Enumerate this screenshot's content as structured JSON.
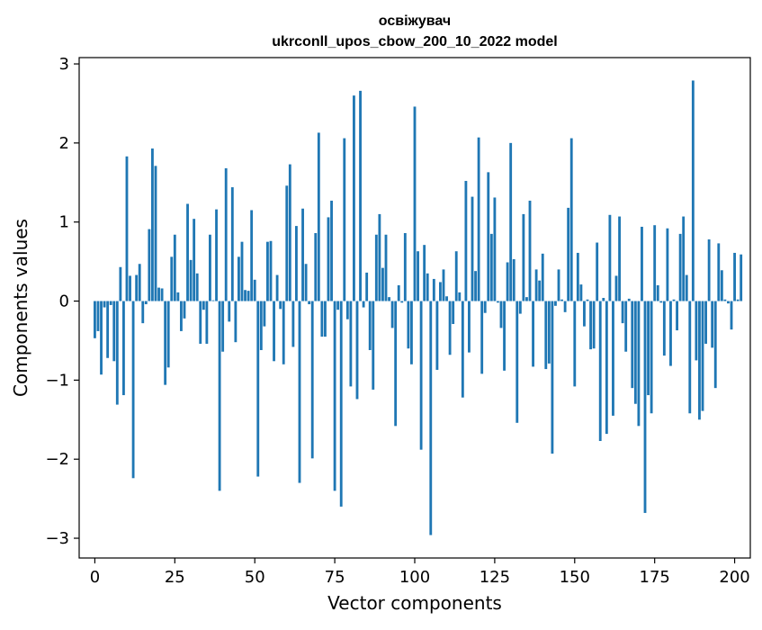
{
  "chart_data": {
    "type": "bar",
    "title_line1": "освіжувач",
    "title_line2": "ukrconll_upos_cbow_200_10_2022 model",
    "xlabel": "Vector components",
    "ylabel": "Components values",
    "xlim": [
      -4.9,
      204.9
    ],
    "ylim": [
      -3.25,
      3.08
    ],
    "x_ticks": [
      0,
      25,
      50,
      75,
      100,
      125,
      150,
      175,
      200
    ],
    "x_tick_labels": [
      "0",
      "25",
      "50",
      "75",
      "100",
      "125",
      "150",
      "175",
      "200"
    ],
    "y_ticks": [
      -3,
      -2,
      -1,
      0,
      1,
      2,
      3
    ],
    "y_tick_labels": [
      "−3",
      "−2",
      "−1",
      "0",
      "1",
      "2",
      "3"
    ],
    "grid": false,
    "bar_color": "#1f77b4",
    "values": [
      -0.47,
      -0.38,
      -0.93,
      -0.08,
      -0.72,
      -0.05,
      -0.76,
      -1.31,
      0.43,
      -1.19,
      1.83,
      0.32,
      -2.24,
      0.33,
      0.47,
      -0.28,
      -0.04,
      0.91,
      1.93,
      1.71,
      0.17,
      0.16,
      -1.06,
      -0.84,
      0.56,
      0.84,
      0.11,
      -0.38,
      -0.22,
      1.23,
      0.52,
      1.04,
      0.35,
      -0.54,
      -0.11,
      -0.54,
      0.84,
      0.01,
      1.16,
      -2.4,
      -0.64,
      1.68,
      -0.26,
      1.44,
      -0.52,
      0.56,
      0.75,
      0.14,
      0.13,
      1.15,
      0.27,
      -2.22,
      -0.62,
      -0.32,
      0.75,
      0.76,
      -0.76,
      0.33,
      -0.1,
      -0.8,
      1.46,
      1.73,
      -0.58,
      0.95,
      -2.3,
      1.17,
      0.47,
      -0.04,
      -1.99,
      0.86,
      2.13,
      -0.45,
      -0.45,
      1.06,
      1.27,
      -2.4,
      -0.11,
      -2.6,
      2.06,
      -0.23,
      -1.08,
      2.6,
      -1.24,
      2.66,
      -0.08,
      0.36,
      -0.62,
      -1.12,
      0.84,
      1.1,
      0.42,
      0.84,
      0.05,
      -0.34,
      -1.58,
      0.2,
      -0.02,
      0.86,
      -0.6,
      -0.8,
      2.46,
      0.63,
      -1.88,
      0.71,
      0.35,
      -2.96,
      0.28,
      -0.87,
      0.24,
      0.4,
      0.06,
      -0.68,
      -0.29,
      0.63,
      0.11,
      -1.22,
      1.52,
      -0.65,
      1.32,
      0.38,
      2.07,
      -0.92,
      -0.15,
      1.63,
      0.85,
      1.31,
      -0.02,
      -0.34,
      -0.88,
      0.49,
      2.0,
      0.53,
      -1.54,
      -0.16,
      1.1,
      0.05,
      1.27,
      -0.83,
      0.4,
      0.26,
      0.6,
      -0.86,
      -0.79,
      -1.93,
      -0.06,
      0.4,
      0.02,
      -0.14,
      1.18,
      2.06,
      -1.08,
      0.61,
      0.21,
      -0.32,
      0.02,
      -0.61,
      -0.6,
      0.74,
      -1.77,
      0.04,
      -1.68,
      1.09,
      -1.45,
      0.32,
      1.07,
      -0.28,
      -0.64,
      0.03,
      -1.1,
      -1.3,
      -1.58,
      0.94,
      -2.68,
      -1.19,
      -1.42,
      0.96,
      0.2,
      -0.02,
      -0.69,
      0.92,
      -0.82,
      0.02,
      -0.37,
      0.85,
      1.07,
      0.33,
      -1.42,
      2.79,
      -0.75,
      -1.5,
      -1.39,
      -0.54,
      0.78,
      -0.59,
      -1.1,
      0.73,
      0.39,
      0.02,
      -0.03,
      -0.36,
      0.61,
      0.02,
      0.59
    ]
  }
}
